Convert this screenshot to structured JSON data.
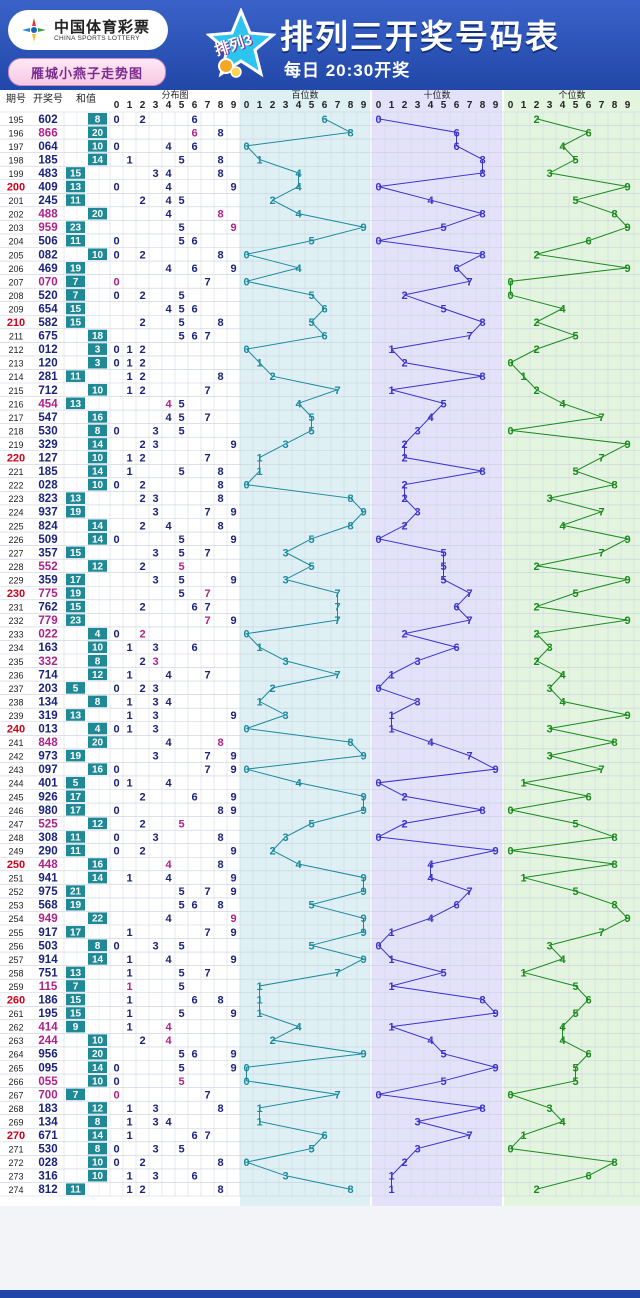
{
  "header": {
    "logo_cn": "中国体育彩票",
    "logo_en": "CHINA SPORTS LOTTERY",
    "ribbon_text": "雁城小燕子走势图",
    "badge_text": "排列3",
    "title": "排列三开奖号码表",
    "subtitle": "每日  20:30开奖"
  },
  "table": {
    "col_period": "期号",
    "col_number": "开奖号",
    "col_sum": "和值",
    "section_dist": "分布图",
    "section_hundreds": "百位数",
    "section_tens": "十位数",
    "section_units": "个位数",
    "digits": [
      "0",
      "1",
      "2",
      "3",
      "4",
      "5",
      "6",
      "7",
      "8",
      "9"
    ]
  },
  "colors": {
    "period_highlight": "#d0021b",
    "number_normal": "#1a237e",
    "number_pair": "#b0218a",
    "sum_box": "#1f8a96",
    "hundreds": "#1b8a9e",
    "tens": "#3a33c8",
    "units": "#1a8a1e",
    "dist": "#1a237e"
  },
  "chart_data": {
    "type": "table",
    "columns": [
      "期号",
      "开奖号",
      "和值"
    ],
    "rows": [
      [
        "195",
        "602",
        "8"
      ],
      [
        "196",
        "866",
        "20"
      ],
      [
        "197",
        "064",
        "10"
      ],
      [
        "198",
        "185",
        "14"
      ],
      [
        "199",
        "483",
        "15"
      ],
      [
        "200",
        "409",
        "13"
      ],
      [
        "201",
        "245",
        "11"
      ],
      [
        "202",
        "488",
        "20"
      ],
      [
        "203",
        "959",
        "23"
      ],
      [
        "204",
        "506",
        "11"
      ],
      [
        "205",
        "082",
        "10"
      ],
      [
        "206",
        "469",
        "19"
      ],
      [
        "207",
        "070",
        "7"
      ],
      [
        "208",
        "520",
        "7"
      ],
      [
        "209",
        "654",
        "15"
      ],
      [
        "210",
        "582",
        "15"
      ],
      [
        "211",
        "675",
        "18"
      ],
      [
        "212",
        "012",
        "3"
      ],
      [
        "213",
        "120",
        "3"
      ],
      [
        "214",
        "281",
        "11"
      ],
      [
        "215",
        "712",
        "10"
      ],
      [
        "216",
        "454",
        "13"
      ],
      [
        "217",
        "547",
        "16"
      ],
      [
        "218",
        "530",
        "8"
      ],
      [
        "219",
        "329",
        "14"
      ],
      [
        "220",
        "127",
        "10"
      ],
      [
        "221",
        "185",
        "14"
      ],
      [
        "222",
        "028",
        "10"
      ],
      [
        "223",
        "823",
        "13"
      ],
      [
        "224",
        "937",
        "19"
      ],
      [
        "225",
        "824",
        "14"
      ],
      [
        "226",
        "509",
        "14"
      ],
      [
        "227",
        "357",
        "15"
      ],
      [
        "228",
        "552",
        "12"
      ],
      [
        "229",
        "359",
        "17"
      ],
      [
        "230",
        "775",
        "19"
      ],
      [
        "231",
        "762",
        "15"
      ],
      [
        "232",
        "779",
        "23"
      ],
      [
        "233",
        "022",
        "4"
      ],
      [
        "234",
        "163",
        "10"
      ],
      [
        "235",
        "332",
        "8"
      ],
      [
        "236",
        "714",
        "12"
      ],
      [
        "237",
        "203",
        "5"
      ],
      [
        "238",
        "134",
        "8"
      ],
      [
        "239",
        "319",
        "13"
      ],
      [
        "240",
        "013",
        "4"
      ],
      [
        "241",
        "848",
        "20"
      ],
      [
        "242",
        "973",
        "19"
      ],
      [
        "243",
        "097",
        "16"
      ],
      [
        "244",
        "401",
        "5"
      ],
      [
        "245",
        "926",
        "17"
      ],
      [
        "246",
        "980",
        "17"
      ],
      [
        "247",
        "525",
        "12"
      ],
      [
        "248",
        "308",
        "11"
      ],
      [
        "249",
        "290",
        "11"
      ],
      [
        "250",
        "448",
        "16"
      ],
      [
        "251",
        "941",
        "14"
      ],
      [
        "252",
        "975",
        "21"
      ],
      [
        "253",
        "568",
        "19"
      ],
      [
        "254",
        "949",
        "22"
      ],
      [
        "255",
        "917",
        "17"
      ],
      [
        "256",
        "503",
        "8"
      ],
      [
        "257",
        "914",
        "14"
      ],
      [
        "258",
        "751",
        "13"
      ],
      [
        "259",
        "115",
        "7"
      ],
      [
        "260",
        "186",
        "15"
      ],
      [
        "261",
        "195",
        "15"
      ],
      [
        "262",
        "414",
        "9"
      ],
      [
        "263",
        "244",
        "10"
      ],
      [
        "264",
        "956",
        "20"
      ],
      [
        "265",
        "095",
        "14"
      ],
      [
        "266",
        "055",
        "10"
      ],
      [
        "267",
        "700",
        "7"
      ],
      [
        "268",
        "183",
        "12"
      ],
      [
        "269",
        "134",
        "8"
      ],
      [
        "270",
        "671",
        "14"
      ],
      [
        "271",
        "530",
        "8"
      ],
      [
        "272",
        "028",
        "10"
      ],
      [
        "273",
        "316",
        "10"
      ],
      [
        "274",
        "812",
        "11"
      ]
    ],
    "highlight_periods": [
      "200",
      "210",
      "220",
      "230",
      "240",
      "250",
      "260",
      "270"
    ]
  }
}
